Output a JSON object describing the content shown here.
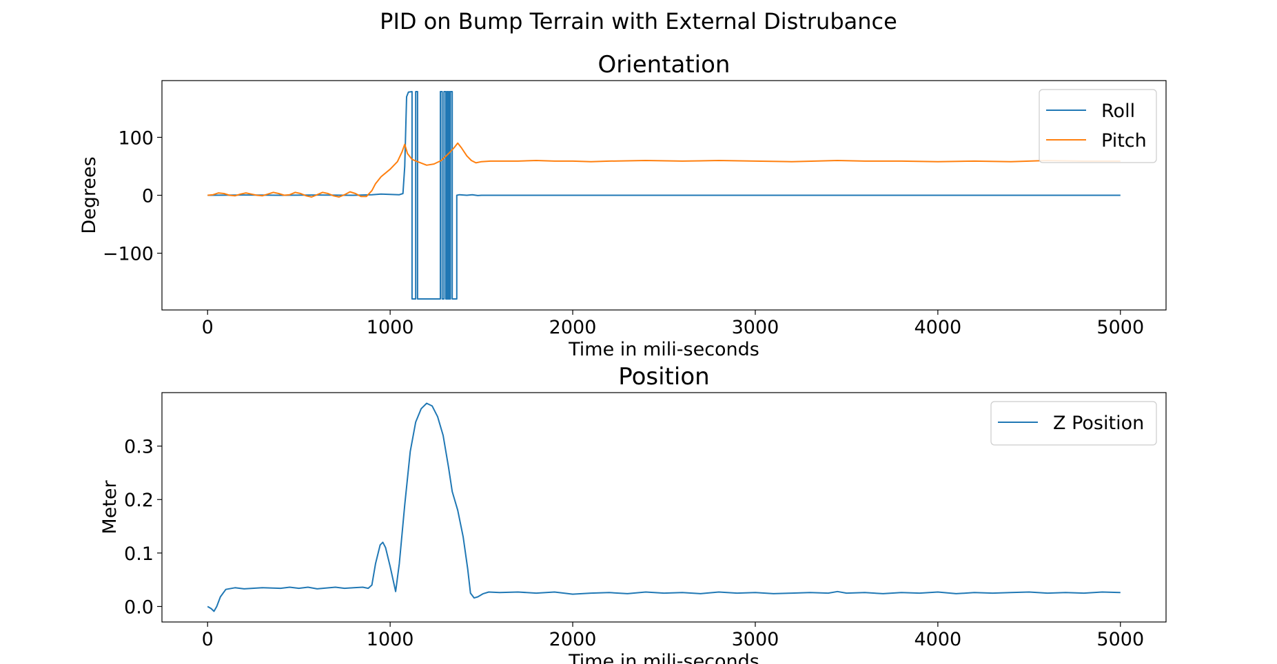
{
  "figure_title": "PID on Bump Terrain with External Distrubance",
  "chart_data": [
    {
      "type": "line",
      "title": "Orientation",
      "xlabel": "Time in mili-seconds",
      "ylabel": "Degrees",
      "xlim": [
        -250,
        5250
      ],
      "ylim": [
        -198,
        198
      ],
      "xticks": [
        0,
        1000,
        2000,
        3000,
        4000,
        5000
      ],
      "xtick_labels": [
        "0",
        "1000",
        "2000",
        "3000",
        "4000",
        "5000"
      ],
      "yticks": [
        -100,
        0,
        100
      ],
      "ytick_labels": [
        "−100",
        "0",
        "100"
      ],
      "grid": false,
      "legend": "top-right",
      "series": [
        {
          "name": "Roll",
          "color": "#1f77b4",
          "points": [
            [
              0,
              0
            ],
            [
              200,
              0.5
            ],
            [
              400,
              0
            ],
            [
              600,
              0.5
            ],
            [
              800,
              0
            ],
            [
              900,
              1
            ],
            [
              950,
              2
            ],
            [
              1000,
              1.5
            ],
            [
              1050,
              1
            ],
            [
              1070,
              3
            ],
            [
              1080,
              50
            ],
            [
              1090,
              170
            ],
            [
              1100,
              178
            ],
            [
              1120,
              179
            ],
            [
              1120,
              -179
            ],
            [
              1140,
              -179
            ],
            [
              1140,
              179
            ],
            [
              1150,
              179
            ],
            [
              1150,
              -179
            ],
            [
              1275,
              -179
            ],
            [
              1275,
              179
            ],
            [
              1285,
              179
            ],
            [
              1285,
              -179
            ],
            [
              1295,
              -179
            ],
            [
              1295,
              179
            ],
            [
              1305,
              179
            ],
            [
              1305,
              -179
            ],
            [
              1310,
              -179
            ],
            [
              1310,
              179
            ],
            [
              1315,
              179
            ],
            [
              1315,
              -179
            ],
            [
              1320,
              -179
            ],
            [
              1320,
              179
            ],
            [
              1325,
              179
            ],
            [
              1325,
              -179
            ],
            [
              1330,
              -179
            ],
            [
              1330,
              179
            ],
            [
              1340,
              179
            ],
            [
              1340,
              -179
            ],
            [
              1365,
              -179
            ],
            [
              1365,
              0
            ],
            [
              1380,
              1
            ],
            [
              1420,
              0
            ],
            [
              1450,
              1
            ],
            [
              1480,
              -0.5
            ],
            [
              1500,
              0
            ],
            [
              2000,
              0
            ],
            [
              3000,
              0
            ],
            [
              4000,
              0
            ],
            [
              5000,
              0
            ]
          ]
        },
        {
          "name": "Pitch",
          "color": "#ff7f0e",
          "points": [
            [
              0,
              0
            ],
            [
              30,
              1
            ],
            [
              60,
              4
            ],
            [
              90,
              3
            ],
            [
              120,
              0
            ],
            [
              150,
              -1
            ],
            [
              180,
              2
            ],
            [
              210,
              4
            ],
            [
              240,
              2
            ],
            [
              270,
              0
            ],
            [
              300,
              -1
            ],
            [
              330,
              2
            ],
            [
              360,
              5
            ],
            [
              390,
              3
            ],
            [
              420,
              0
            ],
            [
              450,
              1
            ],
            [
              480,
              5
            ],
            [
              510,
              3
            ],
            [
              540,
              -1
            ],
            [
              570,
              -3
            ],
            [
              600,
              1
            ],
            [
              630,
              5
            ],
            [
              660,
              3
            ],
            [
              690,
              -1
            ],
            [
              720,
              -3
            ],
            [
              750,
              1
            ],
            [
              780,
              6
            ],
            [
              810,
              3
            ],
            [
              840,
              -2
            ],
            [
              870,
              -2
            ],
            [
              900,
              8
            ],
            [
              920,
              20
            ],
            [
              950,
              32
            ],
            [
              1000,
              45
            ],
            [
              1040,
              58
            ],
            [
              1065,
              75
            ],
            [
              1080,
              88
            ],
            [
              1095,
              72
            ],
            [
              1120,
              62
            ],
            [
              1150,
              58
            ],
            [
              1200,
              52
            ],
            [
              1240,
              54
            ],
            [
              1280,
              60
            ],
            [
              1320,
              72
            ],
            [
              1350,
              82
            ],
            [
              1370,
              90
            ],
            [
              1390,
              82
            ],
            [
              1420,
              68
            ],
            [
              1445,
              60
            ],
            [
              1470,
              56
            ],
            [
              1500,
              58
            ],
            [
              1550,
              59
            ],
            [
              1700,
              59
            ],
            [
              1800,
              60
            ],
            [
              1900,
              59
            ],
            [
              2000,
              59
            ],
            [
              2100,
              58
            ],
            [
              2200,
              59
            ],
            [
              2400,
              60
            ],
            [
              2600,
              59
            ],
            [
              2800,
              60
            ],
            [
              3000,
              59
            ],
            [
              3200,
              58
            ],
            [
              3450,
              60
            ],
            [
              3600,
              59
            ],
            [
              3800,
              59
            ],
            [
              4000,
              58
            ],
            [
              4200,
              59
            ],
            [
              4400,
              58
            ],
            [
              4600,
              60
            ],
            [
              4800,
              59
            ],
            [
              5000,
              59
            ]
          ]
        }
      ]
    },
    {
      "type": "line",
      "title": "Position",
      "xlabel": "Time in mili-seconds",
      "ylabel": "Meter",
      "xlim": [
        -250,
        5250
      ],
      "ylim": [
        -0.029,
        0.4
      ],
      "xticks": [
        0,
        1000,
        2000,
        3000,
        4000,
        5000
      ],
      "xtick_labels": [
        "0",
        "1000",
        "2000",
        "3000",
        "4000",
        "5000"
      ],
      "yticks": [
        0.0,
        0.1,
        0.2,
        0.3
      ],
      "ytick_labels": [
        "0.0",
        "0.1",
        "0.2",
        "0.3"
      ],
      "grid": false,
      "legend": "top-right",
      "series": [
        {
          "name": "Z Position",
          "color": "#1f77b4",
          "points": [
            [
              0,
              0
            ],
            [
              20,
              -0.004
            ],
            [
              35,
              -0.009
            ],
            [
              50,
              0.0
            ],
            [
              70,
              0.018
            ],
            [
              100,
              0.032
            ],
            [
              150,
              0.035
            ],
            [
              200,
              0.033
            ],
            [
              300,
              0.035
            ],
            [
              400,
              0.034
            ],
            [
              450,
              0.036
            ],
            [
              500,
              0.034
            ],
            [
              550,
              0.036
            ],
            [
              600,
              0.033
            ],
            [
              700,
              0.036
            ],
            [
              750,
              0.034
            ],
            [
              800,
              0.035
            ],
            [
              850,
              0.036
            ],
            [
              880,
              0.034
            ],
            [
              900,
              0.04
            ],
            [
              920,
              0.08
            ],
            [
              945,
              0.115
            ],
            [
              960,
              0.12
            ],
            [
              975,
              0.11
            ],
            [
              1000,
              0.075
            ],
            [
              1030,
              0.028
            ],
            [
              1050,
              0.08
            ],
            [
              1080,
              0.19
            ],
            [
              1110,
              0.29
            ],
            [
              1140,
              0.345
            ],
            [
              1170,
              0.37
            ],
            [
              1200,
              0.38
            ],
            [
              1230,
              0.375
            ],
            [
              1260,
              0.355
            ],
            [
              1290,
              0.32
            ],
            [
              1320,
              0.26
            ],
            [
              1340,
              0.215
            ],
            [
              1370,
              0.18
            ],
            [
              1400,
              0.13
            ],
            [
              1425,
              0.07
            ],
            [
              1440,
              0.025
            ],
            [
              1460,
              0.016
            ],
            [
              1480,
              0.018
            ],
            [
              1510,
              0.024
            ],
            [
              1540,
              0.027
            ],
            [
              1600,
              0.026
            ],
            [
              1700,
              0.027
            ],
            [
              1800,
              0.025
            ],
            [
              1900,
              0.027
            ],
            [
              2000,
              0.023
            ],
            [
              2100,
              0.025
            ],
            [
              2200,
              0.026
            ],
            [
              2300,
              0.024
            ],
            [
              2400,
              0.027
            ],
            [
              2500,
              0.025
            ],
            [
              2600,
              0.026
            ],
            [
              2700,
              0.024
            ],
            [
              2800,
              0.027
            ],
            [
              2900,
              0.025
            ],
            [
              3000,
              0.026
            ],
            [
              3100,
              0.024
            ],
            [
              3200,
              0.025
            ],
            [
              3300,
              0.026
            ],
            [
              3400,
              0.025
            ],
            [
              3450,
              0.028
            ],
            [
              3500,
              0.025
            ],
            [
              3600,
              0.026
            ],
            [
              3700,
              0.024
            ],
            [
              3800,
              0.026
            ],
            [
              3900,
              0.025
            ],
            [
              4000,
              0.027
            ],
            [
              4100,
              0.024
            ],
            [
              4200,
              0.026
            ],
            [
              4300,
              0.025
            ],
            [
              4400,
              0.026
            ],
            [
              4500,
              0.027
            ],
            [
              4600,
              0.025
            ],
            [
              4700,
              0.026
            ],
            [
              4800,
              0.025
            ],
            [
              4900,
              0.027
            ],
            [
              5000,
              0.026
            ]
          ]
        }
      ]
    }
  ]
}
